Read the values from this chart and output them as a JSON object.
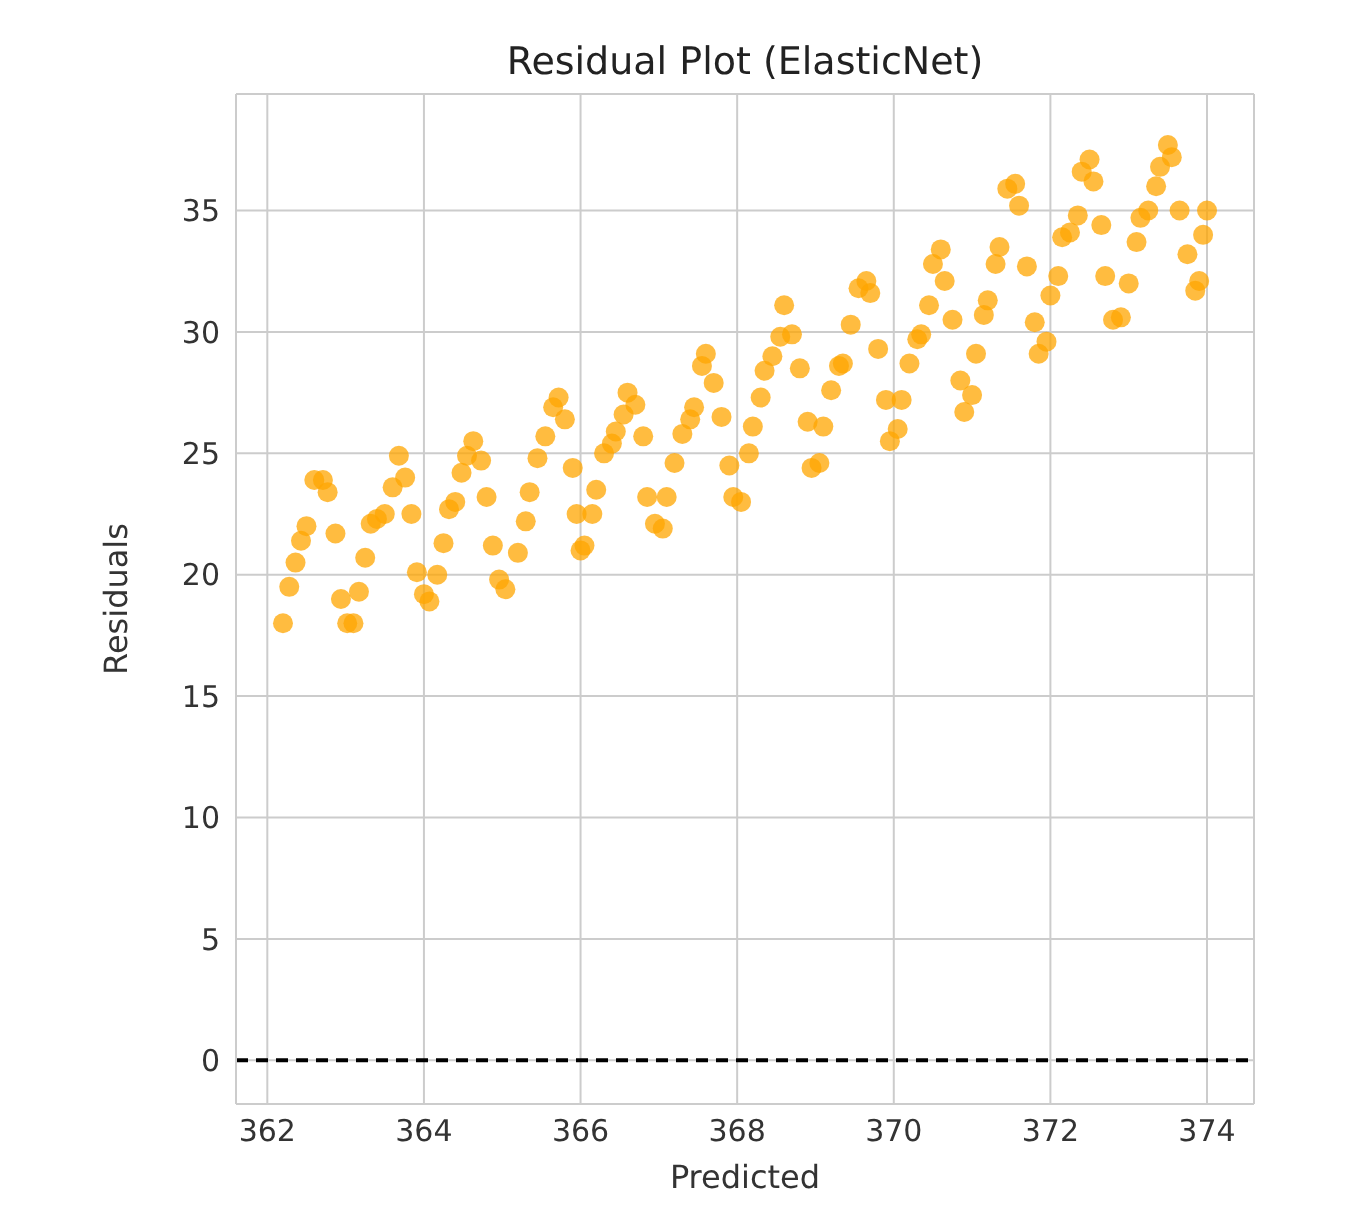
{
  "chart_data": {
    "type": "scatter",
    "title": "Residual Plot (ElasticNet)",
    "xlabel": "Predicted",
    "ylabel": "Residuals",
    "x": [
      362.2,
      362.28,
      362.36,
      362.43,
      362.5,
      362.6,
      362.71,
      362.77,
      362.87,
      362.94,
      363.02,
      363.1,
      363.17,
      363.25,
      363.32,
      363.4,
      363.5,
      363.6,
      363.68,
      363.76,
      363.84,
      363.91,
      364.0,
      364.07,
      364.17,
      364.25,
      364.32,
      364.4,
      364.48,
      364.55,
      364.63,
      364.73,
      364.8,
      364.88,
      364.96,
      365.04,
      365.2,
      365.3,
      365.35,
      365.45,
      365.55,
      365.65,
      365.72,
      365.8,
      365.9,
      365.95,
      366.0,
      366.05,
      366.15,
      366.2,
      366.3,
      366.4,
      366.45,
      366.55,
      366.6,
      366.7,
      366.8,
      366.85,
      366.95,
      367.05,
      367.1,
      367.2,
      367.3,
      367.4,
      367.45,
      367.55,
      367.6,
      367.7,
      367.8,
      367.9,
      367.95,
      368.05,
      368.15,
      368.2,
      368.3,
      368.35,
      368.45,
      368.55,
      368.6,
      368.7,
      368.8,
      368.9,
      368.95,
      369.05,
      369.1,
      369.2,
      369.3,
      369.35,
      369.45,
      369.55,
      369.65,
      369.7,
      369.8,
      369.9,
      369.95,
      370.05,
      370.1,
      370.2,
      370.3,
      370.35,
      370.45,
      370.5,
      370.6,
      370.65,
      370.75,
      370.85,
      370.9,
      371.0,
      371.05,
      371.15,
      371.2,
      371.3,
      371.35,
      371.45,
      371.55,
      371.6,
      371.7,
      371.8,
      371.85,
      371.95,
      372.0,
      372.1,
      372.15,
      372.25,
      372.35,
      372.4,
      372.5,
      372.55,
      372.65,
      372.7,
      372.8,
      372.9,
      373.0,
      373.1,
      373.15,
      373.25,
      373.35,
      373.4,
      373.5,
      373.55,
      373.65,
      373.75,
      373.85,
      373.9,
      373.95,
      374.0
    ],
    "series": [
      {
        "color": "#ffa500",
        "values": [
          18.0,
          19.5,
          20.5,
          21.4,
          22.0,
          23.9,
          23.9,
          23.4,
          21.7,
          19.0,
          18.0,
          18.0,
          19.3,
          20.7,
          22.1,
          22.3,
          22.5,
          23.6,
          24.9,
          24.0,
          22.5,
          20.1,
          19.2,
          18.9,
          20.0,
          21.3,
          22.7,
          23.0,
          24.2,
          24.9,
          25.5,
          24.7,
          23.2,
          21.2,
          19.8,
          19.4,
          20.9,
          22.2,
          23.4,
          24.8,
          25.7,
          26.9,
          27.3,
          26.4,
          24.4,
          22.5,
          21.0,
          21.2,
          22.5,
          23.5,
          25.0,
          25.4,
          25.9,
          26.6,
          27.5,
          27.0,
          25.7,
          23.2,
          22.1,
          21.9,
          23.2,
          24.6,
          25.8,
          26.4,
          26.9,
          28.6,
          29.1,
          27.9,
          26.5,
          24.5,
          23.2,
          23.0,
          25.0,
          26.1,
          27.3,
          28.4,
          29.0,
          29.8,
          31.1,
          29.9,
          28.5,
          26.3,
          24.4,
          24.6,
          26.1,
          27.6,
          28.6,
          28.7,
          30.3,
          31.8,
          32.1,
          31.6,
          29.3,
          27.2,
          25.5,
          26.0,
          27.2,
          28.7,
          29.7,
          29.9,
          31.1,
          32.8,
          33.4,
          32.1,
          30.5,
          28.0,
          26.7,
          27.4,
          29.1,
          30.7,
          31.3,
          32.8,
          33.5,
          35.9,
          36.1,
          35.2,
          32.7,
          30.4,
          29.1,
          29.6,
          31.5,
          32.3,
          33.9,
          34.1,
          34.8,
          36.6,
          37.1,
          36.2,
          34.4,
          32.3,
          30.5,
          30.6,
          32.0,
          33.7,
          34.7,
          35.0,
          36.0,
          36.8,
          37.7,
          37.2,
          35.0,
          33.2,
          31.7,
          32.1,
          34.0,
          35.0
        ]
      }
    ],
    "marker": "circle",
    "xlim": [
      361.6,
      374.6
    ],
    "xticks": [
      362,
      364,
      366,
      368,
      370,
      372,
      374
    ],
    "ylim": [
      -1.8,
      39.8
    ],
    "yticks": [
      0,
      5,
      10,
      15,
      20,
      25,
      30,
      35
    ],
    "grid": true,
    "ref_lines": [
      {
        "axis": "y",
        "value": 0,
        "color": "#000000",
        "line_style": "dashed"
      }
    ]
  }
}
